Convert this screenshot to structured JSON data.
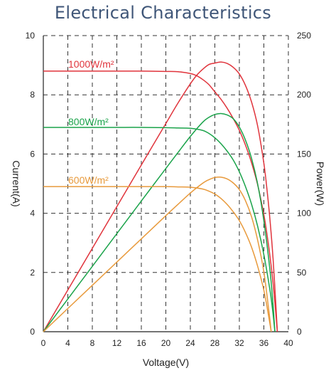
{
  "title": "Electrical Characteristics",
  "chart_data": {
    "type": "line",
    "title": "Electrical Characteristics",
    "xlabel": "Voltage(V)",
    "ylabel_left": "Current(A)",
    "ylabel_right": "Power(W)",
    "xlim": [
      0,
      40
    ],
    "ylim_left": [
      0,
      10
    ],
    "ylim_right": [
      0,
      250
    ],
    "x_ticks": [
      "0",
      "4",
      "8",
      "12",
      "16",
      "20",
      "24",
      "28",
      "32",
      "36",
      "40"
    ],
    "y_ticks_left": [
      "0",
      "2",
      "4",
      "6",
      "8",
      "10"
    ],
    "y_ticks_right": [
      "0",
      "50",
      "100",
      "150",
      "200",
      "250"
    ],
    "grid": true,
    "series": [
      {
        "name": "1000W/m²",
        "color": "#e0343c",
        "iv": {
          "x": [
            0,
            4,
            8,
            12,
            16,
            20,
            22,
            24,
            25,
            26,
            27,
            28,
            29,
            30,
            31,
            32,
            33,
            34,
            35,
            36,
            36.5,
            37,
            37.5,
            38,
            38.2
          ],
          "y": [
            8.8,
            8.8,
            8.8,
            8.8,
            8.8,
            8.79,
            8.78,
            8.72,
            8.65,
            8.52,
            8.35,
            8.1,
            7.85,
            7.55,
            7.2,
            6.8,
            6.3,
            5.7,
            4.95,
            3.95,
            3.3,
            2.55,
            1.65,
            0.5,
            0
          ]
        },
        "pv": {
          "x": [
            0,
            4,
            8,
            12,
            16,
            20,
            22,
            24,
            25,
            26,
            27,
            28,
            29,
            30,
            31,
            32,
            33,
            34,
            35,
            36,
            36.5,
            37,
            37.5,
            38,
            38.2
          ],
          "y": [
            0,
            35.2,
            70.4,
            105.6,
            140.8,
            175.8,
            193.2,
            209.3,
            216.3,
            221.5,
            225.5,
            226.8,
            227.7,
            226.5,
            223.2,
            217.6,
            207.9,
            193.8,
            173.3,
            142.2,
            120.5,
            94.4,
            61.9,
            19,
            0
          ]
        }
      },
      {
        "name": "800W/m²",
        "color": "#1aa34a",
        "iv": {
          "x": [
            0,
            4,
            8,
            12,
            16,
            20,
            22,
            24,
            26,
            27,
            28,
            29,
            30,
            31,
            32,
            33,
            34,
            35,
            36,
            37,
            37.5,
            37.8
          ],
          "y": [
            6.9,
            6.9,
            6.9,
            6.9,
            6.9,
            6.89,
            6.88,
            6.87,
            6.8,
            6.7,
            6.55,
            6.35,
            6.1,
            5.8,
            5.4,
            4.9,
            4.3,
            3.55,
            2.6,
            1.4,
            0.6,
            0
          ]
        },
        "pv": {
          "x": [
            0,
            4,
            8,
            12,
            16,
            20,
            22,
            24,
            26,
            27,
            28,
            29,
            30,
            31,
            32,
            33,
            34,
            35,
            36,
            37,
            37.5,
            37.8
          ],
          "y": [
            0,
            27.6,
            55.2,
            82.8,
            110.4,
            137.8,
            151.4,
            164.9,
            176.8,
            180.9,
            183.4,
            184.2,
            183,
            179.8,
            172.8,
            161.7,
            146.2,
            124.3,
            93.6,
            51.8,
            22.5,
            0
          ]
        }
      },
      {
        "name": "600W/m²",
        "color": "#e89a3c",
        "iv": {
          "x": [
            0,
            4,
            8,
            12,
            16,
            20,
            22,
            24,
            26,
            27,
            28,
            29,
            30,
            31,
            32,
            33,
            34,
            35,
            36,
            36.8,
            37.2
          ],
          "y": [
            4.9,
            4.9,
            4.9,
            4.9,
            4.9,
            4.9,
            4.89,
            4.88,
            4.82,
            4.75,
            4.65,
            4.5,
            4.3,
            4.05,
            3.75,
            3.35,
            2.85,
            2.2,
            1.4,
            0.5,
            0
          ]
        },
        "pv": {
          "x": [
            0,
            4,
            8,
            12,
            16,
            20,
            22,
            24,
            26,
            27,
            28,
            29,
            30,
            31,
            32,
            33,
            34,
            35,
            36,
            36.8,
            37.2
          ],
          "y": [
            0,
            19.6,
            39.2,
            58.8,
            78.4,
            98,
            107.6,
            117.1,
            125.3,
            128.3,
            130.2,
            130.5,
            129,
            125.6,
            120,
            110.6,
            96.9,
            77,
            50.4,
            18.4,
            0
          ]
        }
      }
    ]
  }
}
